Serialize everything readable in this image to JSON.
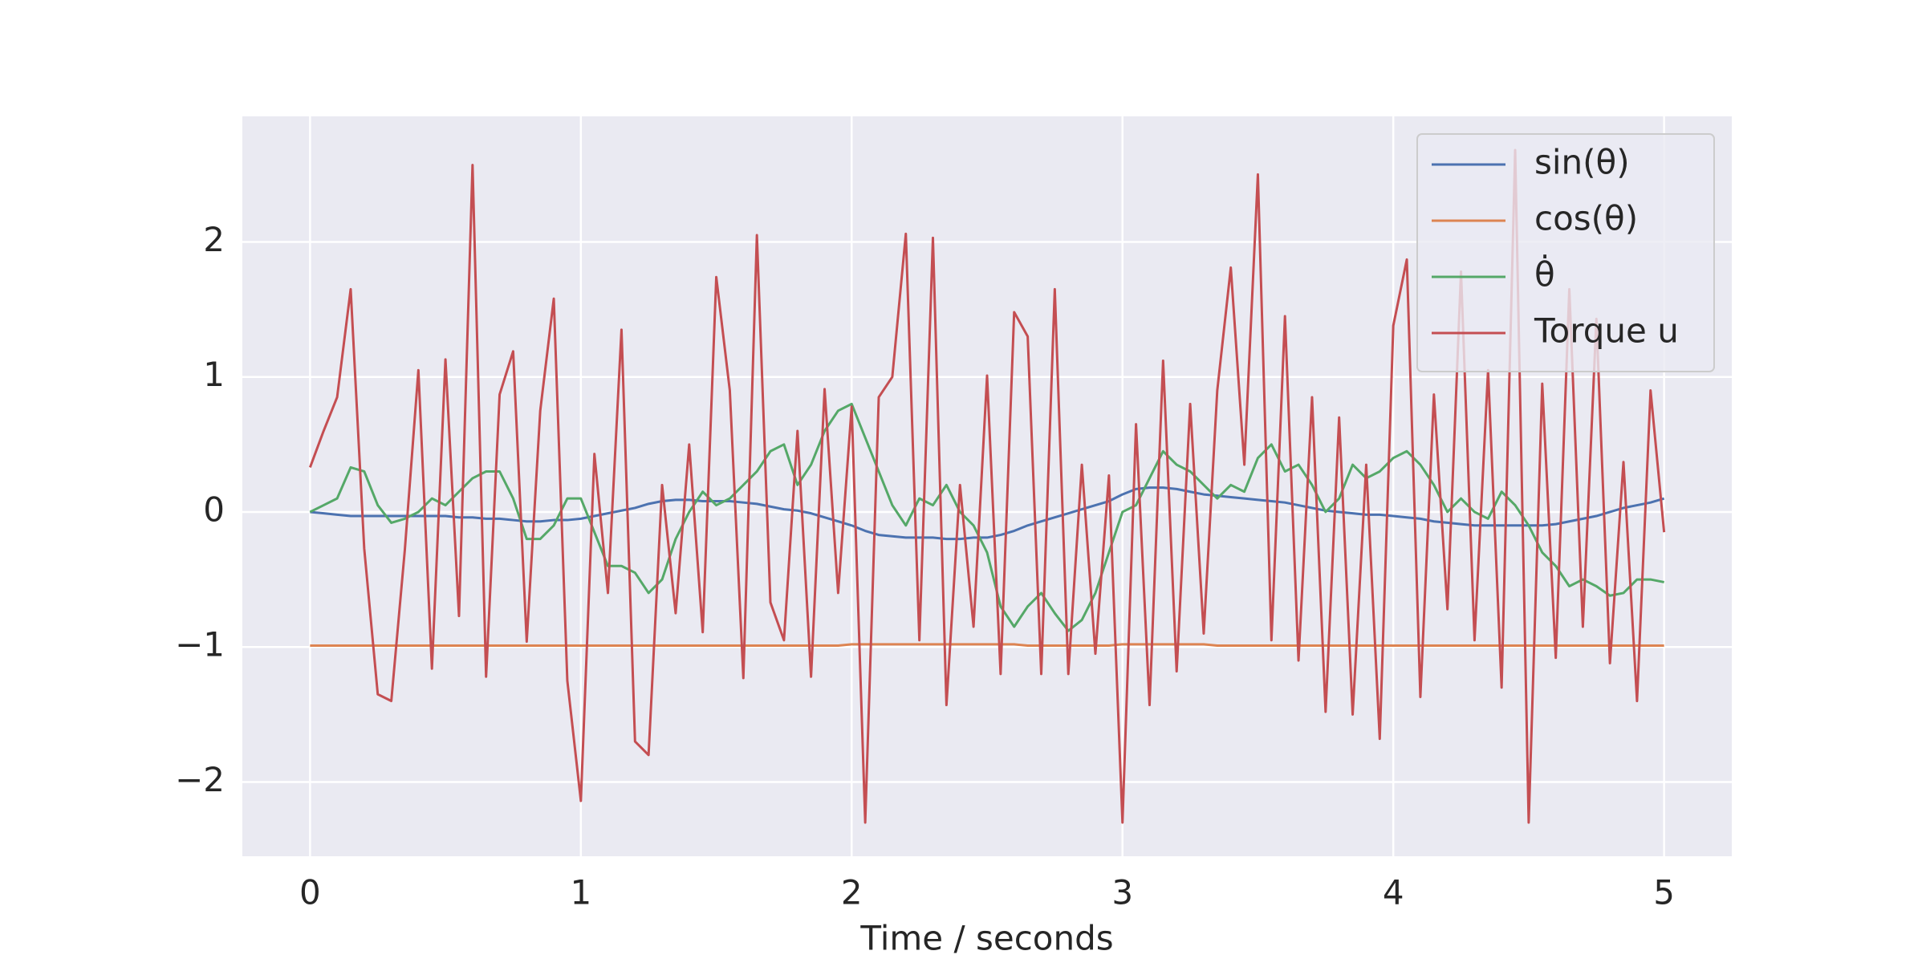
{
  "chart_data": {
    "type": "line",
    "xlabel": "Time / seconds",
    "x": [
      0,
      0.05,
      0.1,
      0.15,
      0.2,
      0.25,
      0.3,
      0.35,
      0.4,
      0.45,
      0.5,
      0.55,
      0.6,
      0.65,
      0.7,
      0.75,
      0.8,
      0.85,
      0.9,
      0.95,
      1,
      1.05,
      1.1,
      1.15,
      1.2,
      1.25,
      1.3,
      1.35,
      1.4,
      1.45,
      1.5,
      1.55,
      1.6,
      1.65,
      1.7,
      1.75,
      1.8,
      1.85,
      1.9,
      1.95,
      2,
      2.05,
      2.1,
      2.15,
      2.2,
      2.25,
      2.3,
      2.35,
      2.4,
      2.45,
      2.5,
      2.55,
      2.6,
      2.65,
      2.7,
      2.75,
      2.8,
      2.85,
      2.9,
      2.95,
      3,
      3.05,
      3.1,
      3.15,
      3.2,
      3.25,
      3.3,
      3.35,
      3.4,
      3.45,
      3.5,
      3.55,
      3.6,
      3.65,
      3.7,
      3.75,
      3.8,
      3.85,
      3.9,
      3.95,
      4,
      4.05,
      4.1,
      4.15,
      4.2,
      4.25,
      4.3,
      4.35,
      4.4,
      4.45,
      4.5,
      4.55,
      4.6,
      4.65,
      4.7,
      4.75,
      4.8,
      4.85,
      4.9,
      4.95,
      5
    ],
    "series": [
      {
        "name": "sin(θ)",
        "color": "#4c72b0",
        "values": [
          0,
          -0.01,
          -0.02,
          -0.03,
          -0.03,
          -0.03,
          -0.03,
          -0.03,
          -0.03,
          -0.03,
          -0.03,
          -0.04,
          -0.04,
          -0.05,
          -0.05,
          -0.06,
          -0.07,
          -0.07,
          -0.06,
          -0.06,
          -0.05,
          -0.03,
          -0.01,
          0.01,
          0.03,
          0.06,
          0.08,
          0.09,
          0.09,
          0.08,
          0.08,
          0.08,
          0.07,
          0.06,
          0.04,
          0.02,
          0.01,
          -0.01,
          -0.04,
          -0.07,
          -0.1,
          -0.14,
          -0.17,
          -0.18,
          -0.19,
          -0.19,
          -0.19,
          -0.2,
          -0.2,
          -0.19,
          -0.19,
          -0.17,
          -0.14,
          -0.1,
          -0.07,
          -0.04,
          -0.01,
          0.02,
          0.05,
          0.08,
          0.13,
          0.17,
          0.18,
          0.18,
          0.17,
          0.15,
          0.13,
          0.12,
          0.11,
          0.1,
          0.09,
          0.08,
          0.07,
          0.05,
          0.03,
          0.01,
          0,
          -0.01,
          -0.02,
          -0.02,
          -0.03,
          -0.04,
          -0.05,
          -0.07,
          -0.08,
          -0.09,
          -0.1,
          -0.1,
          -0.1,
          -0.1,
          -0.1,
          -0.1,
          -0.09,
          -0.07,
          -0.05,
          -0.03,
          0,
          0.03,
          0.05,
          0.07,
          0.1
        ]
      },
      {
        "name": "cos(θ)",
        "color": "#dd8452",
        "values": [
          -0.99,
          -0.99,
          -0.99,
          -0.99,
          -0.99,
          -0.99,
          -0.99,
          -0.99,
          -0.99,
          -0.99,
          -0.99,
          -0.99,
          -0.99,
          -0.99,
          -0.99,
          -0.99,
          -0.99,
          -0.99,
          -0.99,
          -0.99,
          -0.99,
          -0.99,
          -0.99,
          -0.99,
          -0.99,
          -0.99,
          -0.99,
          -0.99,
          -0.99,
          -0.99,
          -0.99,
          -0.99,
          -0.99,
          -0.99,
          -0.99,
          -0.99,
          -0.99,
          -0.99,
          -0.99,
          -0.99,
          -0.98,
          -0.98,
          -0.98,
          -0.98,
          -0.98,
          -0.98,
          -0.98,
          -0.98,
          -0.98,
          -0.98,
          -0.98,
          -0.98,
          -0.98,
          -0.99,
          -0.99,
          -0.99,
          -0.99,
          -0.99,
          -0.99,
          -0.99,
          -0.98,
          -0.98,
          -0.98,
          -0.98,
          -0.98,
          -0.98,
          -0.98,
          -0.99,
          -0.99,
          -0.99,
          -0.99,
          -0.99,
          -0.99,
          -0.99,
          -0.99,
          -0.99,
          -0.99,
          -0.99,
          -0.99,
          -0.99,
          -0.99,
          -0.99,
          -0.99,
          -0.99,
          -0.99,
          -0.99,
          -0.99,
          -0.99,
          -0.99,
          -0.99,
          -0.99,
          -0.99,
          -0.99,
          -0.99,
          -0.99,
          -0.99,
          -0.99,
          -0.99,
          -0.99,
          -0.99,
          -0.99
        ]
      },
      {
        "name": "θ̇",
        "color": "#55a868",
        "values": [
          0,
          0.05,
          0.1,
          0.33,
          0.3,
          0.05,
          -0.08,
          -0.05,
          0,
          0.1,
          0.05,
          0.15,
          0.25,
          0.3,
          0.3,
          0.1,
          -0.2,
          -0.2,
          -0.1,
          0.1,
          0.1,
          -0.15,
          -0.4,
          -0.4,
          -0.45,
          -0.6,
          -0.5,
          -0.2,
          0,
          0.15,
          0.05,
          0.1,
          0.2,
          0.3,
          0.45,
          0.5,
          0.2,
          0.35,
          0.6,
          0.75,
          0.8,
          0.55,
          0.3,
          0.05,
          -0.1,
          0.1,
          0.05,
          0.2,
          0,
          -0.1,
          -0.3,
          -0.7,
          -0.85,
          -0.7,
          -0.6,
          -0.75,
          -0.88,
          -0.8,
          -0.6,
          -0.3,
          0,
          0.05,
          0.25,
          0.45,
          0.35,
          0.3,
          0.2,
          0.1,
          0.2,
          0.15,
          0.4,
          0.5,
          0.3,
          0.35,
          0.2,
          0,
          0.1,
          0.35,
          0.25,
          0.3,
          0.4,
          0.45,
          0.35,
          0.2,
          0,
          0.1,
          0,
          -0.05,
          0.15,
          0.05,
          -0.1,
          -0.3,
          -0.4,
          -0.55,
          -0.5,
          -0.55,
          -0.62,
          -0.6,
          -0.5,
          -0.5,
          -0.52
        ]
      },
      {
        "name": "Torque u",
        "color": "#c44e52",
        "values": [
          0.33,
          0.6,
          0.85,
          1.65,
          -0.27,
          -1.35,
          -1.4,
          -0.28,
          1.05,
          -1.16,
          1.13,
          -0.77,
          2.57,
          -1.22,
          0.87,
          1.19,
          -0.96,
          0.75,
          1.58,
          -1.25,
          -2.14,
          0.43,
          -0.6,
          1.35,
          -1.7,
          -1.8,
          0.2,
          -0.75,
          0.5,
          -0.89,
          1.74,
          0.9,
          -1.23,
          2.05,
          -0.67,
          -0.95,
          0.6,
          -1.22,
          0.91,
          -0.6,
          0.78,
          -2.3,
          0.85,
          1,
          2.06,
          -0.95,
          2.03,
          -1.43,
          0.2,
          -0.85,
          1.01,
          -1.2,
          1.48,
          1.3,
          -1.2,
          1.65,
          -1.2,
          0.35,
          -1.05,
          0.27,
          -2.3,
          0.65,
          -1.43,
          1.12,
          -1.18,
          0.8,
          -0.9,
          0.9,
          1.81,
          0.35,
          2.5,
          -0.95,
          1.45,
          -1.1,
          0.85,
          -1.48,
          0.7,
          -1.5,
          0.35,
          -1.68,
          1.38,
          1.87,
          -1.37,
          0.87,
          -0.72,
          1.78,
          -0.95,
          1.05,
          -1.3,
          2.68,
          -2.3,
          0.95,
          -1.08,
          1.65,
          -0.85,
          1.43,
          -1.12,
          0.37,
          -1.4,
          0.9,
          -0.15
        ]
      }
    ],
    "xlim": [
      -0.25,
      5.25
    ],
    "ylim": [
      -2.55,
      2.93
    ],
    "xticks": [
      0,
      1,
      2,
      3,
      4,
      5
    ],
    "yticks": [
      {
        "value": -2,
        "label": "−2"
      },
      {
        "value": -1,
        "label": "−1"
      },
      0,
      1,
      2
    ],
    "grid": true,
    "legend": "upper right"
  }
}
